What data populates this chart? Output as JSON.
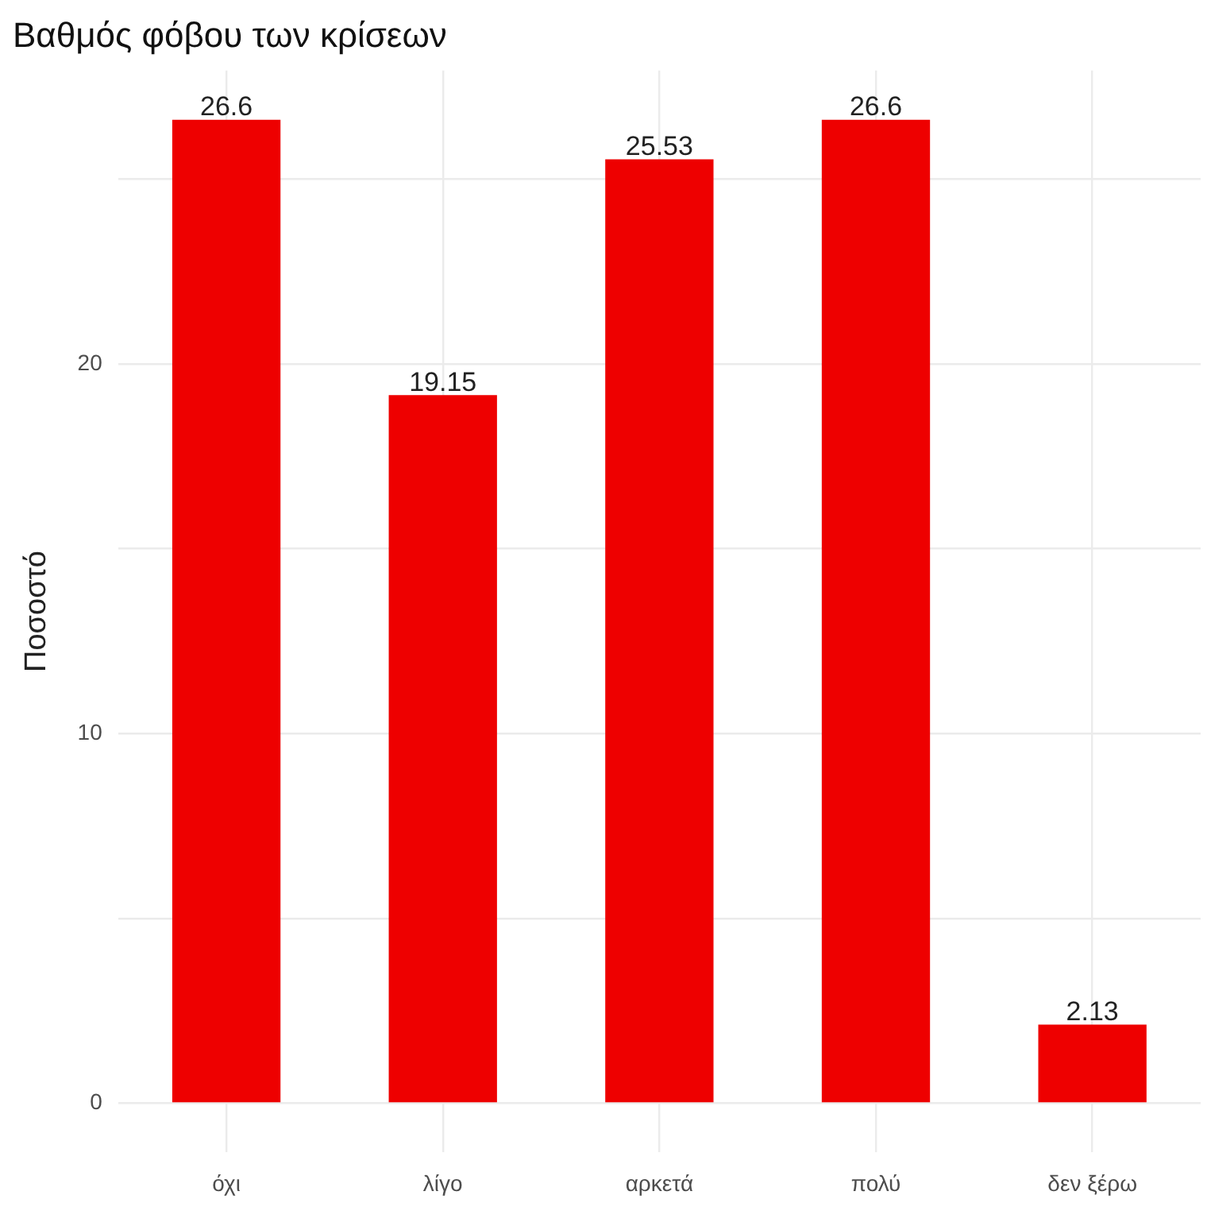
{
  "chart_data": {
    "type": "bar",
    "title": "Βαθμός φόβου των κρίσεων",
    "ylabel": "Ποσοστό",
    "categories": [
      "όχι",
      "λίγο",
      "αρκετά",
      "πολύ",
      "δεν ξέρω"
    ],
    "values": [
      26.6,
      19.15,
      25.53,
      26.6,
      2.13
    ],
    "color": "#ee0000",
    "ylim": [
      -1.33,
      27.93
    ],
    "yticks": [
      0,
      {
        "value": 5,
        "label": null
      },
      10,
      {
        "value": 15,
        "label": null
      },
      20,
      {
        "value": 25,
        "label": null
      }
    ],
    "grid": true,
    "data_labels": true
  }
}
